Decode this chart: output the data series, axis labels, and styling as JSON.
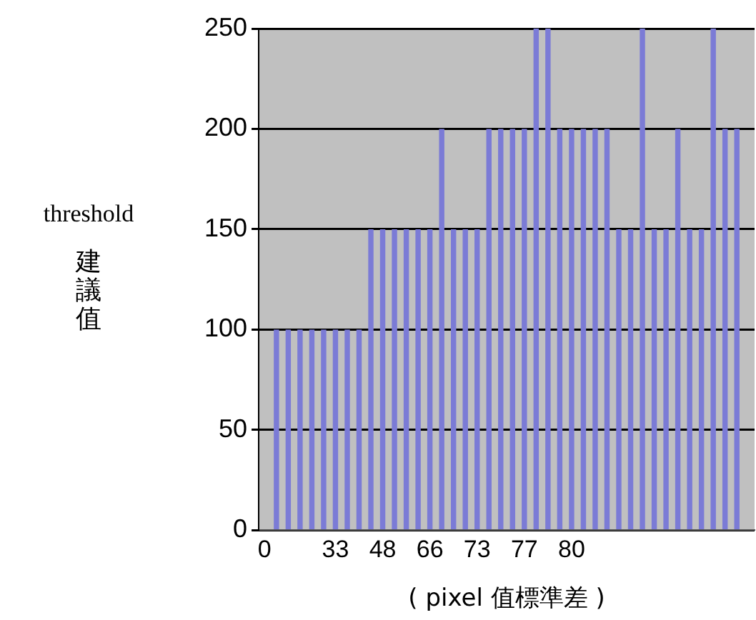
{
  "chart_data": {
    "type": "bar",
    "ylabel": "threshold\n建議值",
    "xlabel": "( pixel 值標準差 )",
    "categories": [
      "0",
      null,
      null,
      null,
      null,
      null,
      "33",
      null,
      null,
      null,
      "48",
      null,
      null,
      null,
      "66",
      null,
      null,
      null,
      "73",
      null,
      null,
      null,
      "77",
      null,
      null,
      null,
      "80",
      null,
      null,
      null,
      null,
      null,
      null,
      null,
      null,
      null,
      null,
      null,
      null,
      null,
      null,
      null
    ],
    "values": [
      0,
      100,
      100,
      100,
      100,
      100,
      100,
      100,
      100,
      150,
      150,
      150,
      150,
      150,
      150,
      200,
      150,
      150,
      150,
      200,
      200,
      200,
      200,
      250,
      250,
      200,
      200,
      200,
      200,
      200,
      150,
      150,
      250,
      150,
      150,
      200,
      150,
      150,
      250,
      200,
      200,
      0
    ],
    "color": "#7b7bd6",
    "ylim": [
      0,
      250
    ],
    "yticks": [
      0,
      50,
      100,
      150,
      200,
      250
    ],
    "grid": "y"
  }
}
